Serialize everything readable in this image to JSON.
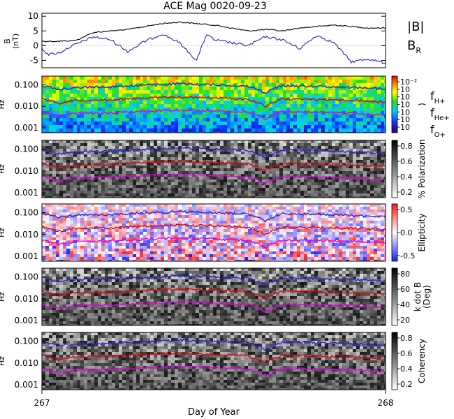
{
  "title": "ACE Mag 0020-09-23",
  "xlabel": "Day of Year",
  "x_ticks": [
    "267",
    "268"
  ],
  "panels": [
    {
      "id": "mag",
      "ylabel": "B\n(nT)",
      "y_ticks": [
        "10",
        "5",
        "0",
        "-5"
      ],
      "legend": [
        {
          "text": "|B|",
          "color": "#000000"
        },
        {
          "text": "B",
          "sub": "R",
          "color": "#2222dd"
        }
      ]
    },
    {
      "id": "power",
      "ylabel": "Hz",
      "y_ticks": [
        "0.100",
        "0.010",
        "0.001"
      ],
      "colorbar": {
        "label": ")",
        "ticks": [
          "10⁻²",
          "10",
          "10",
          "10",
          "10",
          "10",
          "10"
        ]
      },
      "legend": [
        {
          "text": "f",
          "sub": "H+",
          "color": "#2222dd"
        },
        {
          "text": "f",
          "sub": "He+",
          "color": "#dd0000"
        },
        {
          "text": "f",
          "sub": "O+",
          "color": "#dd00dd"
        }
      ]
    },
    {
      "id": "polarization",
      "ylabel": "Hz",
      "y_ticks": [
        "0.100",
        "0.010",
        "0.001"
      ],
      "colorbar": {
        "label": "% Polarization",
        "ticks": [
          "0.8",
          "0.6",
          "0.4",
          "0.2"
        ]
      }
    },
    {
      "id": "ellipticity",
      "ylabel": "Hz",
      "y_ticks": [
        "0.100",
        "0.010",
        "0.001"
      ],
      "colorbar": {
        "label": "Ellipticity",
        "ticks": [
          "0.5",
          "0.0",
          "-0.5"
        ]
      }
    },
    {
      "id": "kdotb",
      "ylabel": "Hz",
      "y_ticks": [
        "0.100",
        "0.010",
        "0.001"
      ],
      "colorbar": {
        "label": "k dot B\n(Deg)",
        "ticks": [
          "80",
          "60",
          "40",
          "20"
        ]
      }
    },
    {
      "id": "coherency",
      "ylabel": "Hz",
      "y_ticks": [
        "0.100",
        "0.010",
        "0.001"
      ],
      "colorbar": {
        "label": "Coherency",
        "ticks": [
          "0.8",
          "0.6",
          "0.4",
          "0.2"
        ]
      }
    }
  ],
  "chart_data": {
    "type": "line",
    "title": "ACE Mag 0020-09-23",
    "xlabel": "Day of Year",
    "xlim": [
      267,
      268
    ],
    "mag_panel": {
      "ylim": [
        -7.5,
        11
      ],
      "series": [
        {
          "name": "|B|",
          "color": "#000000",
          "x": [
            267.0,
            267.05,
            267.1,
            267.15,
            267.2,
            267.25,
            267.3,
            267.35,
            267.4,
            267.45,
            267.5,
            267.55,
            267.6,
            267.65,
            267.7,
            267.75,
            267.8,
            267.85,
            267.9,
            267.95,
            268.0
          ],
          "y": [
            1.5,
            1.5,
            1.8,
            4.5,
            5.0,
            5.5,
            6.5,
            7.5,
            8.0,
            7.5,
            7.0,
            6.0,
            5.0,
            5.5,
            5.0,
            6.0,
            6.5,
            7.0,
            6.5,
            6.0,
            6.0
          ]
        },
        {
          "name": "B_R",
          "color": "#2222dd",
          "x": [
            267.0,
            267.02,
            267.05,
            267.08,
            267.1,
            267.15,
            267.2,
            267.25,
            267.3,
            267.35,
            267.4,
            267.45,
            267.48,
            267.5,
            267.55,
            267.6,
            267.65,
            267.7,
            267.75,
            267.8,
            267.85,
            267.9,
            267.95,
            268.0
          ],
          "y": [
            -1.0,
            -3.0,
            -2.5,
            -0.5,
            0.5,
            3.0,
            2.0,
            -2.0,
            1.5,
            4.0,
            1.0,
            -5.0,
            4.0,
            2.0,
            1.0,
            0.0,
            3.0,
            2.0,
            -1.0,
            3.5,
            1.0,
            -5.5,
            -4.5,
            -6.0
          ]
        }
      ]
    },
    "frequency_panels": {
      "scale": "log",
      "ylim": [
        0.0006,
        0.25
      ],
      "series": [
        {
          "name": "f_H+",
          "color": "#2222dd",
          "x": [
            267.0,
            267.05,
            267.1,
            267.2,
            267.3,
            267.4,
            267.5,
            267.6,
            267.65,
            267.7,
            267.8,
            267.9,
            268.0
          ],
          "y": [
            0.09,
            0.06,
            0.075,
            0.08,
            0.095,
            0.11,
            0.1,
            0.085,
            0.04,
            0.09,
            0.085,
            0.075,
            0.065
          ]
        },
        {
          "name": "f_He+",
          "color": "#dd0000",
          "x": [
            267.0,
            267.05,
            267.1,
            267.2,
            267.3,
            267.4,
            267.5,
            267.6,
            267.65,
            267.7,
            267.8,
            267.9,
            268.0
          ],
          "y": [
            0.022,
            0.014,
            0.019,
            0.02,
            0.024,
            0.027,
            0.025,
            0.021,
            0.01,
            0.022,
            0.021,
            0.019,
            0.016
          ]
        },
        {
          "name": "f_O+",
          "color": "#dd00dd",
          "x": [
            267.0,
            267.05,
            267.1,
            267.2,
            267.3,
            267.4,
            267.5,
            267.6,
            267.65,
            267.7,
            267.8,
            267.9,
            268.0
          ],
          "y": [
            0.0055,
            0.0035,
            0.0048,
            0.005,
            0.006,
            0.0068,
            0.0062,
            0.0053,
            0.0025,
            0.0055,
            0.0052,
            0.0048,
            0.004
          ]
        }
      ]
    }
  }
}
